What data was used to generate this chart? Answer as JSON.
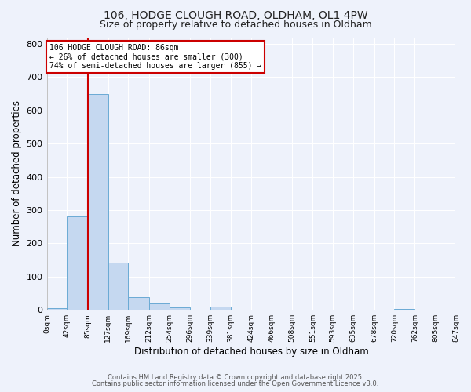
{
  "title1": "106, HODGE CLOUGH ROAD, OLDHAM, OL1 4PW",
  "title2": "Size of property relative to detached houses in Oldham",
  "xlabel": "Distribution of detached houses by size in Oldham",
  "ylabel": "Number of detached properties",
  "bar_values": [
    5,
    280,
    650,
    143,
    38,
    20,
    8,
    0,
    10,
    0,
    0,
    0,
    0,
    0,
    0,
    0,
    0,
    2,
    0,
    0
  ],
  "bar_edges": [
    0,
    42,
    85,
    127,
    169,
    212,
    254,
    296,
    339,
    381,
    424,
    466,
    508,
    551,
    593,
    635,
    678,
    720,
    762,
    805,
    847
  ],
  "tick_labels": [
    "0sqm",
    "42sqm",
    "85sqm",
    "127sqm",
    "169sqm",
    "212sqm",
    "254sqm",
    "296sqm",
    "339sqm",
    "381sqm",
    "424sqm",
    "466sqm",
    "508sqm",
    "551sqm",
    "593sqm",
    "635sqm",
    "678sqm",
    "720sqm",
    "762sqm",
    "805sqm",
    "847sqm"
  ],
  "bar_color": "#c5d8f0",
  "bar_edge_color": "#6aaad4",
  "vline_x": 85,
  "vline_color": "#cc0000",
  "ylim": [
    0,
    820
  ],
  "yticks": [
    0,
    100,
    200,
    300,
    400,
    500,
    600,
    700,
    800
  ],
  "annotation_text": "106 HODGE CLOUGH ROAD: 86sqm\n← 26% of detached houses are smaller (300)\n74% of semi-detached houses are larger (855) →",
  "annotation_box_color": "#ffffff",
  "annotation_box_edge": "#cc0000",
  "footer1": "Contains HM Land Registry data © Crown copyright and database right 2025.",
  "footer2": "Contains public sector information licensed under the Open Government Licence v3.0.",
  "bg_color": "#eef2fb",
  "grid_color": "#ffffff",
  "title_fontsize": 10,
  "subtitle_fontsize": 9
}
